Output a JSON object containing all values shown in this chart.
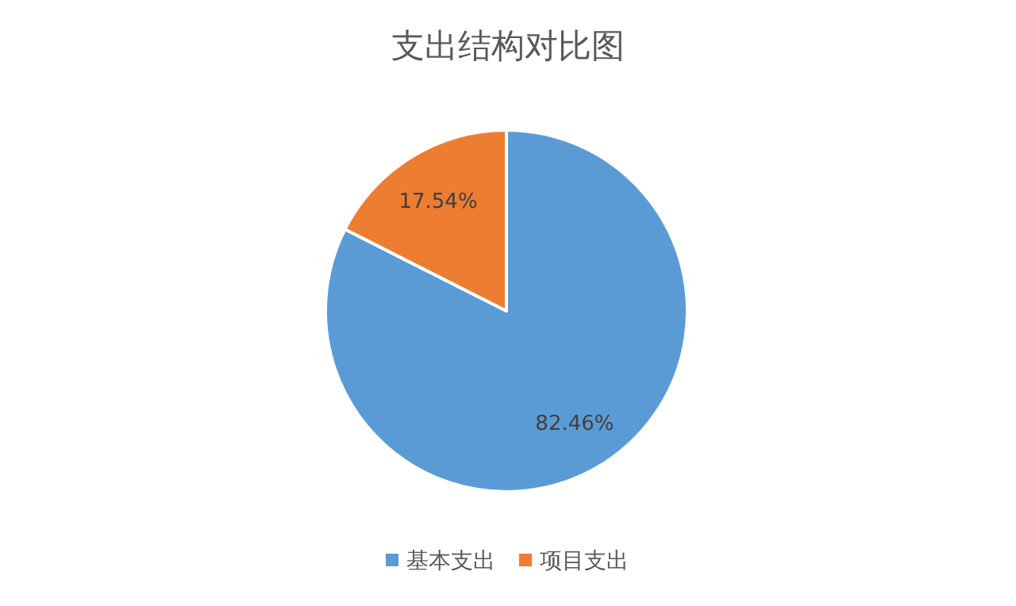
{
  "chart_data": {
    "type": "pie",
    "title": "支出结构对比图",
    "categories": [
      "基本支出",
      "项目支出"
    ],
    "values": [
      82.46,
      17.54
    ],
    "colors": [
      "#5b9bd5",
      "#ed7d31"
    ],
    "value_labels": [
      "82.46%",
      "17.54%"
    ],
    "legend": "bottom"
  }
}
